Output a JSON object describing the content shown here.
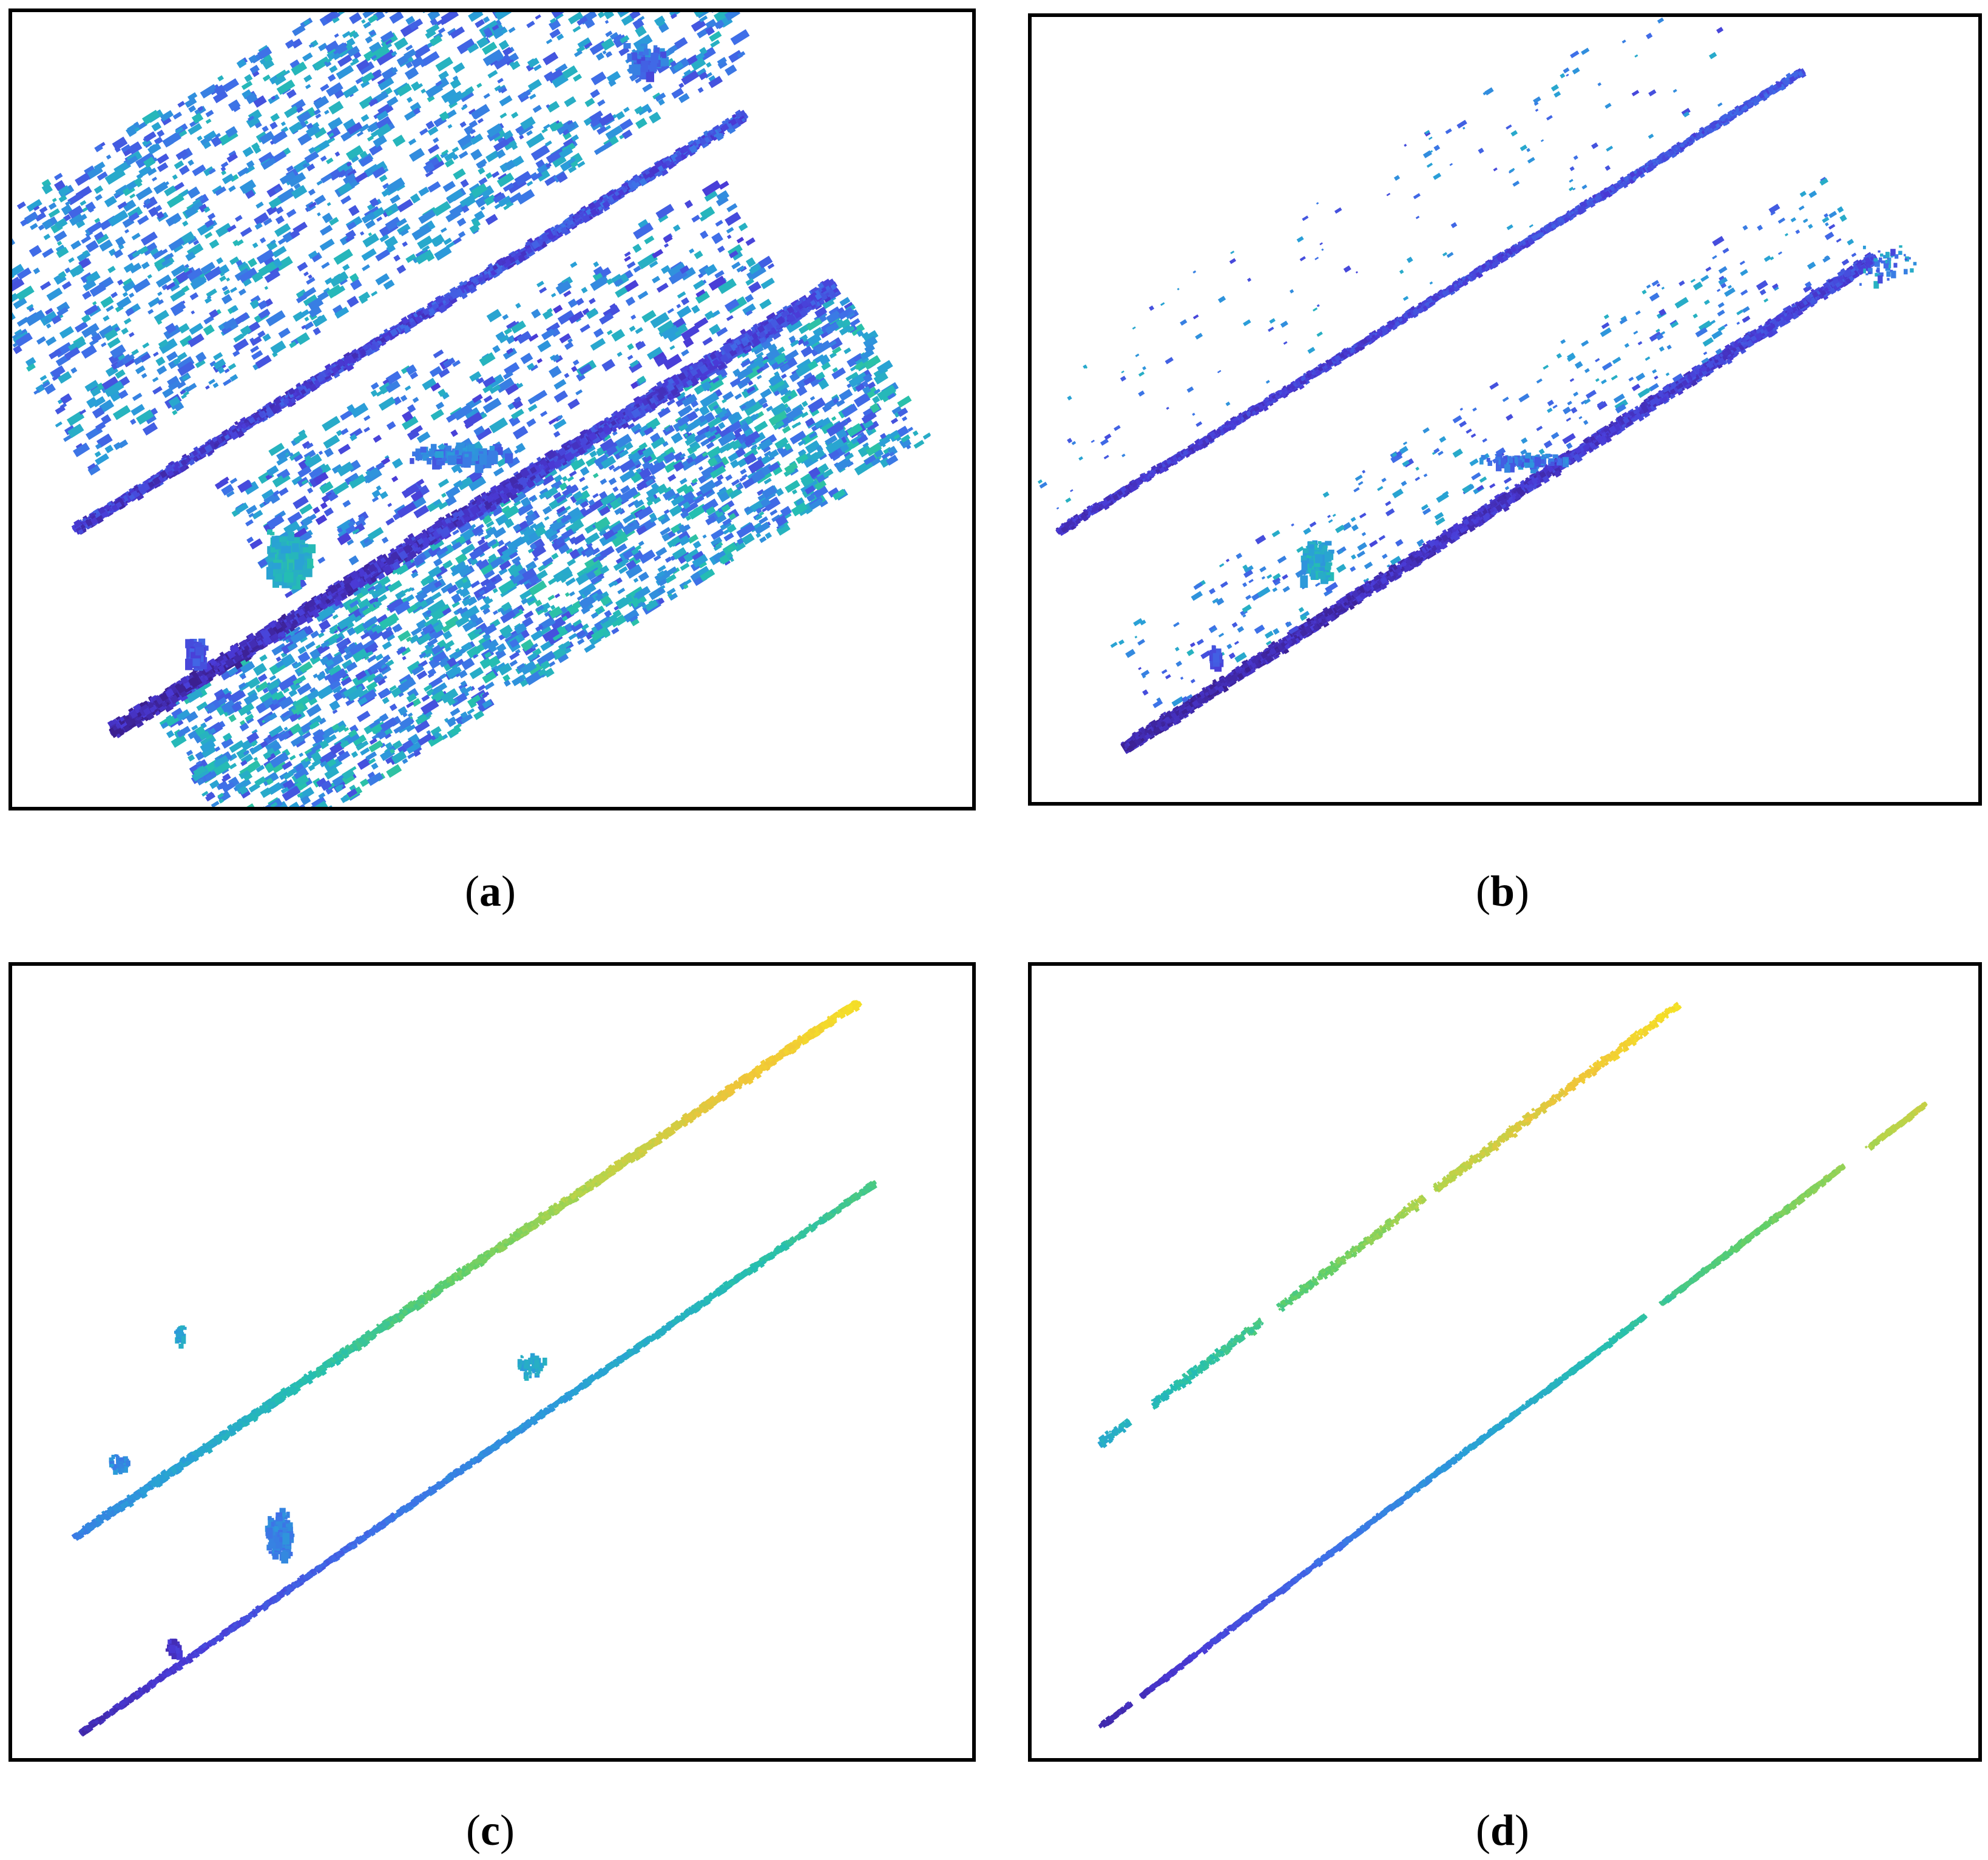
{
  "figure": {
    "colormap": [
      "#3b1f8f",
      "#4a3ad6",
      "#3f6fe8",
      "#2a9fd8",
      "#25bfb0",
      "#5fcf6a",
      "#b8d44a",
      "#f0c43a",
      "#f5e425"
    ],
    "panels": [
      {
        "id": "a",
        "caption": {
          "open": "(",
          "letter": "a",
          "close": ")"
        }
      },
      {
        "id": "b",
        "caption": {
          "open": "(",
          "letter": "b",
          "close": ")"
        }
      },
      {
        "id": "c",
        "caption": {
          "open": "(",
          "letter": "c",
          "close": ")"
        }
      },
      {
        "id": "d",
        "caption": {
          "open": "(",
          "letter": "d",
          "close": ")"
        }
      }
    ]
  }
}
